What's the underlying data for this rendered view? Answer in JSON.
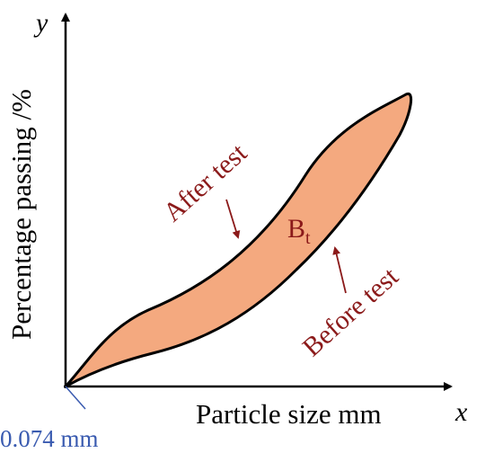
{
  "figure": {
    "axis_x_symbol": "x",
    "axis_y_symbol": "y",
    "x_axis_label": "Particle size mm",
    "y_axis_label": "Percentage passing /%",
    "origin_label": "0.074 mm",
    "region_label_main": "B",
    "region_label_sub": "t",
    "after_label": "After test",
    "before_label": "Before test",
    "colors": {
      "fill": "#f4a97f",
      "stroke": "#000000",
      "annotation_text": "#8b1a1a",
      "origin_text": "#3a5bb0"
    }
  }
}
